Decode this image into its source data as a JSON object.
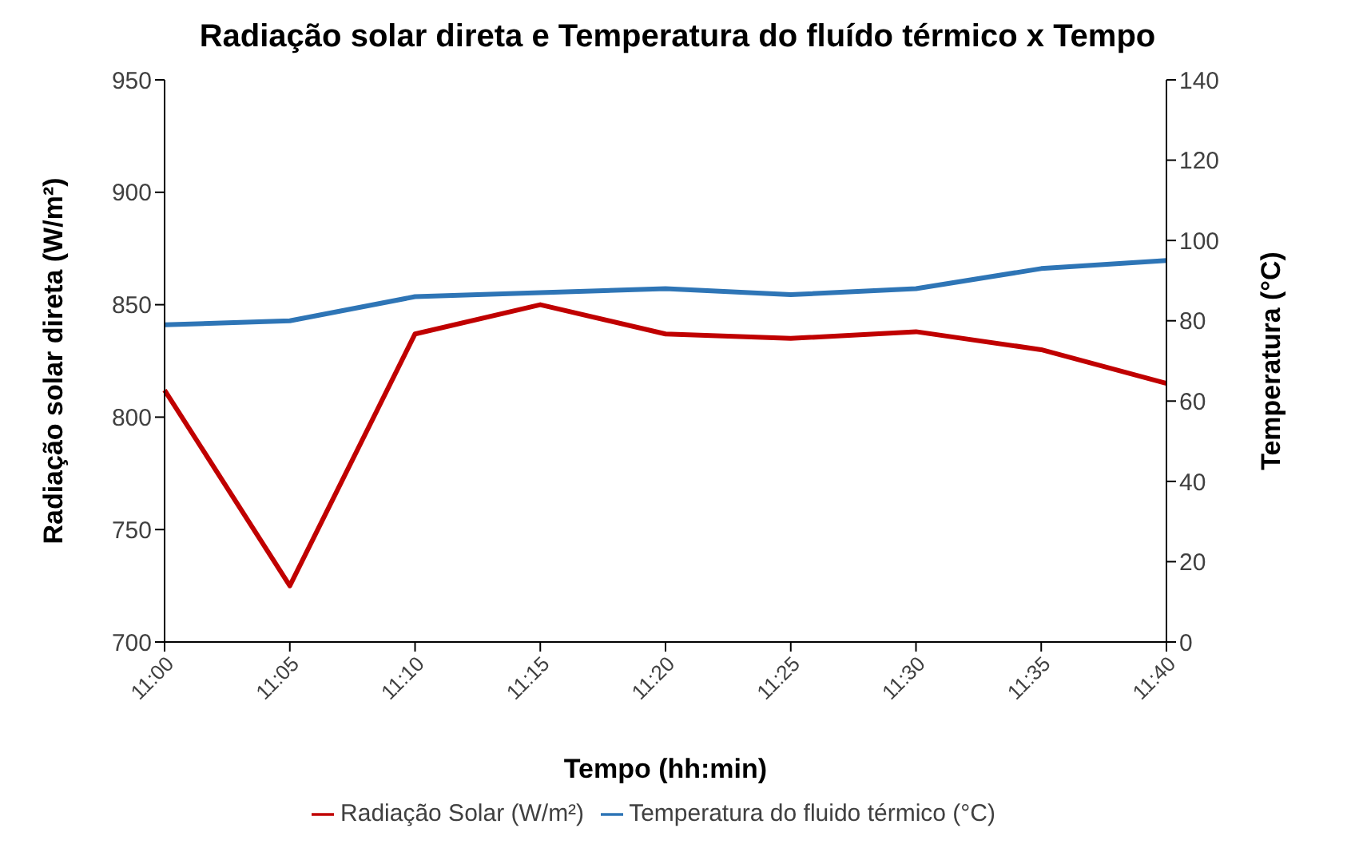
{
  "chart_data": {
    "type": "line",
    "title": "Radiação solar direta e Temperatura do fluído térmico x Tempo",
    "xlabel": "Tempo (hh:min)",
    "ylabel": "Radiação solar direta (W/m²)",
    "y2label": "Temperatura (°C)",
    "categories": [
      "11:00",
      "11:05",
      "11:10",
      "11:15",
      "11:20",
      "11:25",
      "11:30",
      "11:35",
      "11:40"
    ],
    "series": [
      {
        "name": "Radiação Solar (W/m²)",
        "color": "#c00000",
        "values": [
          812,
          725,
          837,
          850,
          837,
          835,
          838,
          830,
          815
        ]
      },
      {
        "name": "Temperatura do fluido térmico (°C)",
        "color": "#2e75b6",
        "axis": "y2",
        "values": [
          79,
          80,
          86,
          87,
          88,
          86.5,
          88,
          93,
          95
        ]
      }
    ],
    "ylim": [
      700,
      950
    ],
    "yticks": [
      700,
      750,
      800,
      850,
      900,
      950
    ],
    "y2lim": [
      0,
      140
    ],
    "y2ticks": [
      0,
      20,
      40,
      60,
      80,
      100,
      120,
      140
    ],
    "legend": "bottom",
    "marker": "none",
    "line_style": "solid"
  }
}
